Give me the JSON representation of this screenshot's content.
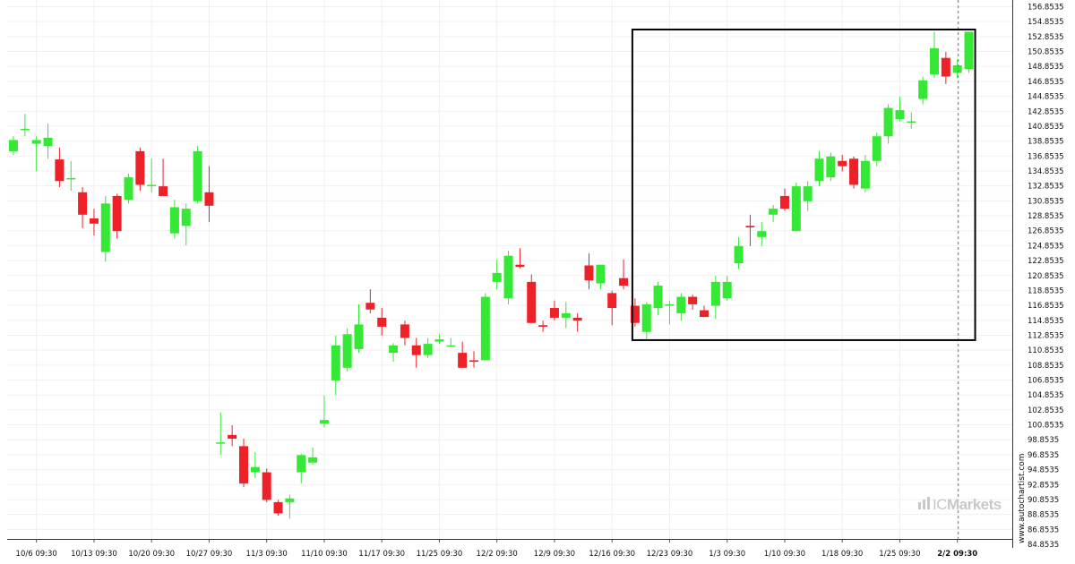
{
  "chart_data": {
    "type": "candlestick",
    "title": "",
    "xlabel": "",
    "ylabel": "",
    "ylim": [
      84.8535,
      157.2
    ],
    "grid": true,
    "y_ticks": [
      "156.8535",
      "154.8535",
      "152.8535",
      "150.8535",
      "148.8535",
      "146.8535",
      "144.8535",
      "142.8535",
      "140.8535",
      "138.8535",
      "136.8535",
      "134.8535",
      "132.8535",
      "130.8535",
      "128.8535",
      "126.8535",
      "124.8535",
      "122.8535",
      "120.8535",
      "118.8535",
      "116.8535",
      "114.8535",
      "112.8535",
      "110.8535",
      "108.8535",
      "106.8535",
      "104.8535",
      "102.8535",
      "100.8535",
      "98.8535",
      "96.8535",
      "94.8535",
      "92.8535",
      "90.8535",
      "88.8535",
      "86.8535",
      "84.8535"
    ],
    "x_ticks": [
      {
        "label": "10/6 09:30",
        "index": 2
      },
      {
        "label": "10/13 09:30",
        "index": 7
      },
      {
        "label": "10/20 09:30",
        "index": 12
      },
      {
        "label": "10/27 09:30",
        "index": 17
      },
      {
        "label": "11/3 09:30",
        "index": 22
      },
      {
        "label": "11/10 09:30",
        "index": 27
      },
      {
        "label": "11/17 09:30",
        "index": 32
      },
      {
        "label": "11/25 09:30",
        "index": 37
      },
      {
        "label": "12/2 09:30",
        "index": 42
      },
      {
        "label": "12/9 09:30",
        "index": 47
      },
      {
        "label": "12/16 09:30",
        "index": 52
      },
      {
        "label": "12/23 09:30",
        "index": 57
      },
      {
        "label": "1/3 09:30",
        "index": 62
      },
      {
        "label": "1/10 09:30",
        "index": 67
      },
      {
        "label": "1/18 09:30",
        "index": 72
      },
      {
        "label": "1/25 09:30",
        "index": 77
      },
      {
        "label": "2/2 09:30",
        "index": 82,
        "bold": true
      }
    ],
    "candles": [
      {
        "o": 137.5,
        "h": 139.5,
        "l": 137.0,
        "c": 139.0
      },
      {
        "o": 140.5,
        "h": 142.5,
        "l": 139.5,
        "c": 140.5
      },
      {
        "o": 138.5,
        "h": 139.5,
        "l": 134.8,
        "c": 139.0
      },
      {
        "o": 138.2,
        "h": 141.2,
        "l": 136.5,
        "c": 139.3
      },
      {
        "o": 136.4,
        "h": 138.0,
        "l": 132.7,
        "c": 133.5
      },
      {
        "o": 133.9,
        "h": 136.2,
        "l": 132.2,
        "c": 133.9
      },
      {
        "o": 132.0,
        "h": 132.7,
        "l": 127.2,
        "c": 129.0
      },
      {
        "o": 128.5,
        "h": 129.8,
        "l": 126.2,
        "c": 127.8
      },
      {
        "o": 124.0,
        "h": 131.5,
        "l": 122.7,
        "c": 130.5
      },
      {
        "o": 131.5,
        "h": 131.8,
        "l": 125.8,
        "c": 126.8
      },
      {
        "o": 131.0,
        "h": 134.5,
        "l": 130.5,
        "c": 134.0
      },
      {
        "o": 137.5,
        "h": 138.0,
        "l": 132.2,
        "c": 133.0
      },
      {
        "o": 133.0,
        "h": 136.5,
        "l": 132.0,
        "c": 133.0
      },
      {
        "o": 132.8,
        "h": 136.5,
        "l": 131.5,
        "c": 131.5
      },
      {
        "o": 126.5,
        "h": 131.0,
        "l": 125.8,
        "c": 130.0
      },
      {
        "o": 127.5,
        "h": 130.5,
        "l": 124.9,
        "c": 129.8
      },
      {
        "o": 130.8,
        "h": 138.2,
        "l": 130.5,
        "c": 137.5
      },
      {
        "o": 132.0,
        "h": 135.5,
        "l": 128.0,
        "c": 130.2
      },
      {
        "o": 98.5,
        "h": 102.5,
        "l": 96.8,
        "c": 98.5
      },
      {
        "o": 99.5,
        "h": 100.8,
        "l": 98.0,
        "c": 99.0
      },
      {
        "o": 98.0,
        "h": 99.0,
        "l": 92.5,
        "c": 93.0
      },
      {
        "o": 94.5,
        "h": 97.2,
        "l": 93.7,
        "c": 95.2
      },
      {
        "o": 94.5,
        "h": 95.0,
        "l": 90.5,
        "c": 90.8
      },
      {
        "o": 90.5,
        "h": 90.8,
        "l": 88.7,
        "c": 89.0
      },
      {
        "o": 90.5,
        "h": 91.5,
        "l": 88.3,
        "c": 91.0
      },
      {
        "o": 94.5,
        "h": 97.0,
        "l": 93.0,
        "c": 96.8
      },
      {
        "o": 95.8,
        "h": 97.8,
        "l": 95.5,
        "c": 96.5
      },
      {
        "o": 101.0,
        "h": 104.8,
        "l": 100.5,
        "c": 101.5
      },
      {
        "o": 106.8,
        "h": 112.8,
        "l": 104.8,
        "c": 111.5
      },
      {
        "o": 108.5,
        "h": 113.8,
        "l": 108.0,
        "c": 113.0
      },
      {
        "o": 111.0,
        "h": 117.0,
        "l": 110.5,
        "c": 114.3
      },
      {
        "o": 117.2,
        "h": 119.0,
        "l": 115.8,
        "c": 116.3
      },
      {
        "o": 115.2,
        "h": 116.5,
        "l": 112.8,
        "c": 114.0
      },
      {
        "o": 110.5,
        "h": 111.8,
        "l": 109.3,
        "c": 111.5
      },
      {
        "o": 114.3,
        "h": 114.8,
        "l": 111.5,
        "c": 112.5
      },
      {
        "o": 111.5,
        "h": 112.5,
        "l": 108.5,
        "c": 110.2
      },
      {
        "o": 110.2,
        "h": 112.5,
        "l": 109.8,
        "c": 111.7
      },
      {
        "o": 112.0,
        "h": 113.0,
        "l": 111.7,
        "c": 112.3
      },
      {
        "o": 111.5,
        "h": 112.5,
        "l": 111.5,
        "c": 111.5
      },
      {
        "o": 110.5,
        "h": 112.0,
        "l": 108.5,
        "c": 108.5
      },
      {
        "o": 109.5,
        "h": 110.7,
        "l": 108.5,
        "c": 109.3
      },
      {
        "o": 109.5,
        "h": 118.5,
        "l": 109.5,
        "c": 118.0
      },
      {
        "o": 120.0,
        "h": 123.0,
        "l": 119.0,
        "c": 121.2
      },
      {
        "o": 117.8,
        "h": 124.2,
        "l": 117.0,
        "c": 123.5
      },
      {
        "o": 122.3,
        "h": 124.5,
        "l": 121.8,
        "c": 122.0
      },
      {
        "o": 120.0,
        "h": 121.0,
        "l": 114.5,
        "c": 114.5
      },
      {
        "o": 114.2,
        "h": 114.8,
        "l": 113.3,
        "c": 114.0
      },
      {
        "o": 116.5,
        "h": 117.5,
        "l": 114.8,
        "c": 115.2
      },
      {
        "o": 115.2,
        "h": 117.3,
        "l": 113.8,
        "c": 115.8
      },
      {
        "o": 115.2,
        "h": 115.8,
        "l": 113.3,
        "c": 114.8
      },
      {
        "o": 122.2,
        "h": 123.8,
        "l": 119.0,
        "c": 120.2
      },
      {
        "o": 119.8,
        "h": 121.8,
        "l": 119.0,
        "c": 122.3
      },
      {
        "o": 118.5,
        "h": 118.8,
        "l": 114.2,
        "c": 116.5
      },
      {
        "o": 120.5,
        "h": 123.0,
        "l": 119.0,
        "c": 119.5
      },
      {
        "o": 116.8,
        "h": 117.8,
        "l": 114.0,
        "c": 114.5
      },
      {
        "o": 113.3,
        "h": 117.3,
        "l": 112.2,
        "c": 117.0
      },
      {
        "o": 116.5,
        "h": 120.0,
        "l": 115.5,
        "c": 119.5
      },
      {
        "o": 116.8,
        "h": 117.5,
        "l": 114.3,
        "c": 117.0
      },
      {
        "o": 115.8,
        "h": 118.5,
        "l": 114.8,
        "c": 118.0
      },
      {
        "o": 118.0,
        "h": 118.3,
        "l": 116.3,
        "c": 117.0
      },
      {
        "o": 116.2,
        "h": 116.8,
        "l": 115.3,
        "c": 115.3
      },
      {
        "o": 116.8,
        "h": 120.8,
        "l": 115.0,
        "c": 120.0
      },
      {
        "o": 117.8,
        "h": 120.8,
        "l": 117.5,
        "c": 120.0
      },
      {
        "o": 122.5,
        "h": 126.0,
        "l": 121.7,
        "c": 124.8
      },
      {
        "o": 127.5,
        "h": 129.0,
        "l": 124.8,
        "c": 127.3
      },
      {
        "o": 126.0,
        "h": 128.0,
        "l": 124.8,
        "c": 126.8
      },
      {
        "o": 129.0,
        "h": 130.3,
        "l": 128.0,
        "c": 129.8
      },
      {
        "o": 131.5,
        "h": 132.5,
        "l": 129.5,
        "c": 129.8
      },
      {
        "o": 126.8,
        "h": 133.3,
        "l": 126.8,
        "c": 132.8
      },
      {
        "o": 130.8,
        "h": 133.5,
        "l": 129.5,
        "c": 132.8
      },
      {
        "o": 133.5,
        "h": 137.5,
        "l": 132.8,
        "c": 136.5
      },
      {
        "o": 134.0,
        "h": 137.3,
        "l": 133.5,
        "c": 136.8
      },
      {
        "o": 136.2,
        "h": 137.0,
        "l": 134.8,
        "c": 135.5
      },
      {
        "o": 136.5,
        "h": 136.8,
        "l": 132.5,
        "c": 133.0
      },
      {
        "o": 132.5,
        "h": 137.0,
        "l": 132.0,
        "c": 136.2
      },
      {
        "o": 136.2,
        "h": 140.0,
        "l": 135.5,
        "c": 139.5
      },
      {
        "o": 139.5,
        "h": 143.8,
        "l": 138.5,
        "c": 143.3
      },
      {
        "o": 141.8,
        "h": 144.8,
        "l": 141.5,
        "c": 143.0
      },
      {
        "o": 141.5,
        "h": 142.7,
        "l": 140.5,
        "c": 141.5
      },
      {
        "o": 144.5,
        "h": 147.5,
        "l": 143.8,
        "c": 147.0
      },
      {
        "o": 147.8,
        "h": 153.5,
        "l": 147.3,
        "c": 151.3
      },
      {
        "o": 150.0,
        "h": 150.8,
        "l": 146.5,
        "c": 147.5
      },
      {
        "o": 148.0,
        "h": 149.8,
        "l": 147.3,
        "c": 149.0
      },
      {
        "o": 148.5,
        "h": 153.5,
        "l": 148.0,
        "c": 153.5
      }
    ],
    "highlight": {
      "from_index": 54,
      "to_index": 83,
      "low": 112.2,
      "high": 153.8
    },
    "vline_index": 82
  },
  "colors": {
    "up": "#35e835",
    "down": "#ee2028",
    "grid": "#f0f0f0",
    "axis": "#111111",
    "box": "#000000"
  },
  "watermark": "www.autochartist.com",
  "logo": {
    "icon": "bars-icon",
    "brand_light": "IC",
    "brand_bold": "Markets"
  }
}
